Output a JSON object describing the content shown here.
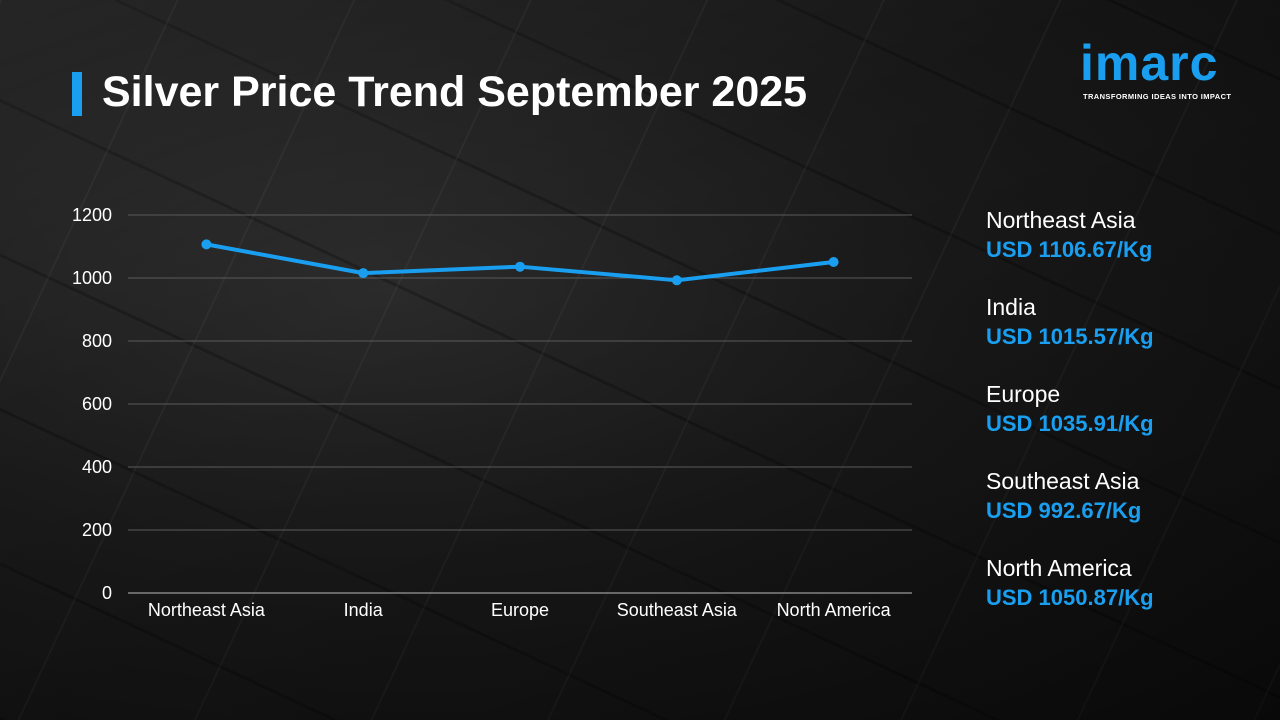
{
  "header": {
    "title": "Silver Price Trend September 2025"
  },
  "logo": {
    "wordmark": "imarc",
    "tagline": "TRANSFORMING IDEAS INTO IMPACT",
    "color": "#1a9ff0"
  },
  "chart_data": {
    "type": "line",
    "title": "Silver Price Trend September 2025",
    "xlabel": "",
    "ylabel": "",
    "categories": [
      "Northeast Asia",
      "India",
      "Europe",
      "Southeast Asia",
      "North America"
    ],
    "series": [
      {
        "values": [
          1106.67,
          1015.57,
          1035.91,
          992.67,
          1050.87
        ],
        "color": "#1a9ff0"
      }
    ],
    "ylim": [
      0,
      1200
    ],
    "yticks": [
      0,
      200,
      400,
      600,
      800,
      1000,
      1200
    ],
    "grid": true,
    "legend": "none"
  },
  "price_list": [
    {
      "region": "Northeast Asia",
      "price": "USD 1106.67/Kg"
    },
    {
      "region": "India",
      "price": "USD 1015.57/Kg"
    },
    {
      "region": "Europe",
      "price": "USD 1035.91/Kg"
    },
    {
      "region": "Southeast Asia",
      "price": "USD 992.67/Kg"
    },
    {
      "region": "North America",
      "price": "USD 1050.87/Kg"
    }
  ],
  "colors": {
    "accent": "#1a9ff0",
    "gridline": "#5a5a5a",
    "text": "#ffffff"
  }
}
